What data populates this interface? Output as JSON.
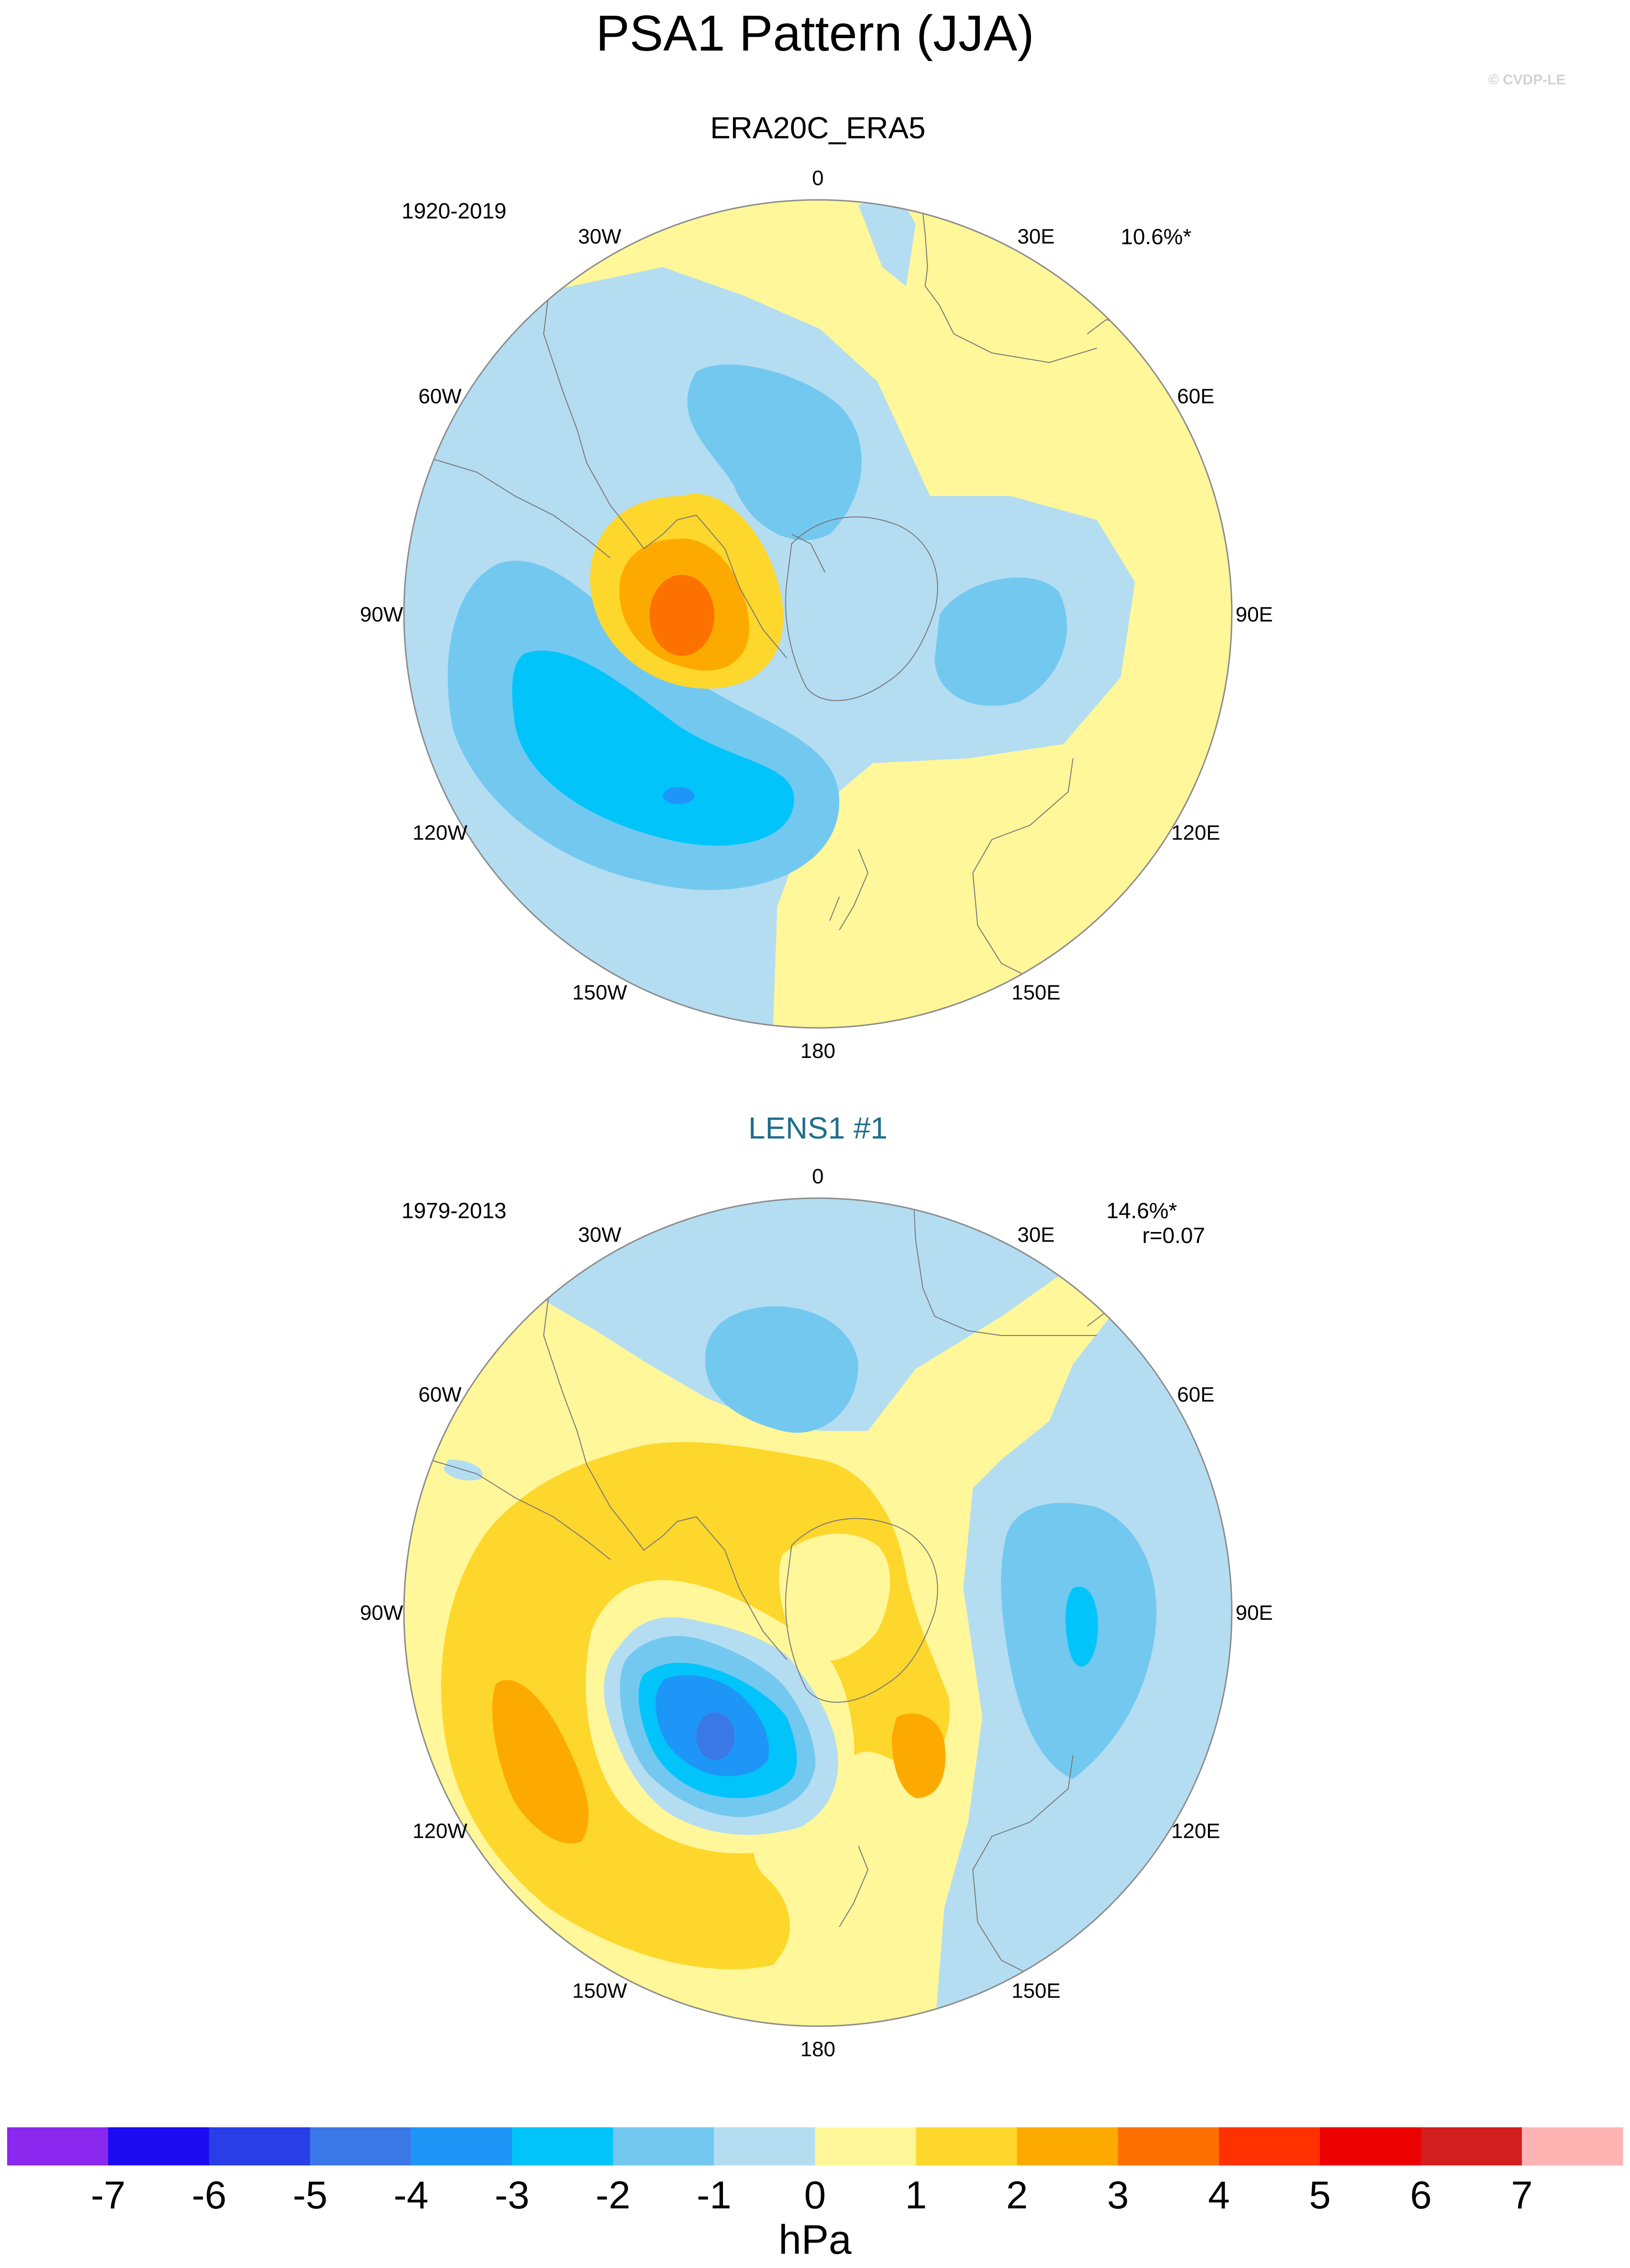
{
  "title": "PSA1 Pattern (JJA)",
  "copyright": "© CVDP-LE",
  "colors": {
    "land_outline": "#7a7a7a",
    "map_border": "#8c8c8c",
    "model_title": "#1f6e8c"
  },
  "lon_labels": [
    "0",
    "30E",
    "60E",
    "90E",
    "120E",
    "150E",
    "180",
    "150W",
    "120W",
    "90W",
    "60W",
    "30W"
  ],
  "chart_data": [
    {
      "type": "heatmap",
      "projection": "south-polar-stereographic",
      "title": "ERA20C_ERA5",
      "period": "1920-2019",
      "variance_explained": "10.6%*",
      "correlation": "",
      "units": "hPa",
      "pattern_features": [
        {
          "name": "base",
          "lon_range": [
            -180,
            180
          ],
          "level": "0 to 1"
        },
        {
          "name": "neg-atlantic",
          "lon": -15,
          "level": "-1 to 0"
        },
        {
          "name": "pos-peninsula",
          "lon": -75,
          "peak": 4
        },
        {
          "name": "neg-amundsen",
          "lon": -120,
          "peak": -4
        },
        {
          "name": "neg-indian",
          "lon": 85,
          "peak": -2
        }
      ]
    },
    {
      "type": "heatmap",
      "projection": "south-polar-stereographic",
      "title": "LENS1 #1",
      "period": "1979-2013",
      "variance_explained": "14.6%*",
      "correlation": "r=0.07",
      "units": "hPa",
      "pattern_features": [
        {
          "name": "base",
          "lon_range": [
            -180,
            180
          ],
          "level": "0 to 1"
        },
        {
          "name": "neg-atlantic",
          "lon": -5,
          "peak": -2
        },
        {
          "name": "pos-pacific",
          "lon": -110,
          "peak": 3
        },
        {
          "name": "neg-ross",
          "lon": -150,
          "peak": -5
        },
        {
          "name": "neg-indian",
          "lon": 90,
          "peak": -3
        }
      ]
    }
  ],
  "colorbar": {
    "label": "hPa",
    "tick_labels": [
      "-7",
      "-6",
      "-5",
      "-4",
      "-3",
      "-2",
      "-1",
      "0",
      "1",
      "2",
      "3",
      "4",
      "5",
      "6",
      "7"
    ],
    "colors": [
      "#8a28f0",
      "#1c0af0",
      "#2a3ee8",
      "#3a78e8",
      "#1e96f8",
      "#00c4fa",
      "#73c8f0",
      "#b4ddf2",
      "#fff799",
      "#fdd72b",
      "#fdaa00",
      "#fd7100",
      "#ff3100",
      "#ec0000",
      "#d21e1e",
      "#ffb4b4"
    ]
  }
}
